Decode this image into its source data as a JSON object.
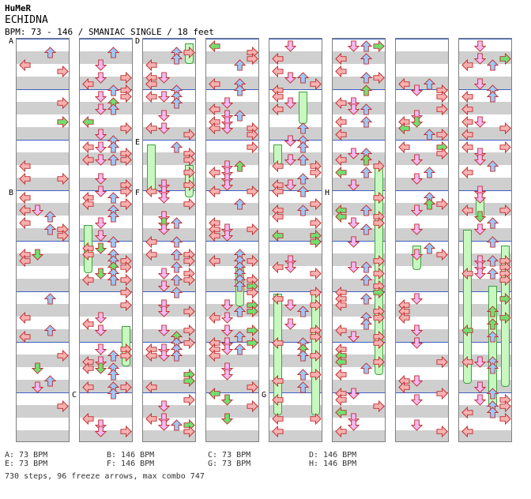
{
  "song": {
    "artist": "HuMeR",
    "title": "ECHIDNA",
    "info": "BPM: 73 - 146 / SMANIAC SINGLE / 18 feet"
  },
  "bpm_legend": [
    [
      "A: 73 BPM",
      "B: 146 BPM",
      "C: 73 BPM",
      "D: 146 BPM"
    ],
    [
      "E: 73 BPM",
      "F: 146 BPM",
      "G: 73 BPM",
      "H: 146 BPM"
    ]
  ],
  "summary": "730 steps, 96 freeze arrows, max combo 747",
  "section_markers": [
    {
      "label": "A",
      "column": 0,
      "row": 0
    },
    {
      "label": "B",
      "column": 0,
      "row": 3
    },
    {
      "label": "C",
      "column": 1,
      "row": 7
    },
    {
      "label": "D",
      "column": 2,
      "row": 0
    },
    {
      "label": "E",
      "column": 2,
      "row": 2
    },
    {
      "label": "F",
      "column": 2,
      "row": 3
    },
    {
      "label": "G",
      "column": 4,
      "row": 7
    },
    {
      "label": "H",
      "column": 5,
      "row": 3
    }
  ],
  "arrow_colors": {
    "left": "#f8b0b0",
    "down": "#f4b8f4",
    "up": "#9cc8f8",
    "right": "#f8b0b0",
    "freeze": "#70e070",
    "freeze_body": "#c8f8c0",
    "measure_line": "#4060c0"
  },
  "columns": [
    {
      "id": 0,
      "density": 0.35,
      "freezes": []
    },
    {
      "id": 1,
      "density": 0.9,
      "freezes": [
        [
          0.45,
          0.12,
          0
        ],
        [
          0.7,
          0.1,
          3
        ]
      ]
    },
    {
      "id": 2,
      "density": 0.85,
      "freezes": [
        [
          0.0,
          0.05,
          3
        ],
        [
          0.25,
          0.12,
          0
        ],
        [
          0.3,
          0.08,
          3
        ]
      ]
    },
    {
      "id": 3,
      "density": 0.8,
      "freezes": [
        [
          0.55,
          0.1,
          2
        ]
      ]
    },
    {
      "id": 4,
      "density": 0.75,
      "freezes": [
        [
          0.12,
          0.08,
          2
        ],
        [
          0.62,
          0.3,
          0
        ],
        [
          0.62,
          0.3,
          3
        ],
        [
          0.25,
          0.05,
          0
        ]
      ]
    },
    {
      "id": 5,
      "density": 0.8,
      "freezes": [
        [
          0.3,
          0.52,
          3
        ]
      ]
    },
    {
      "id": 6,
      "density": 0.65,
      "freezes": [
        [
          0.5,
          0.06,
          1
        ]
      ]
    },
    {
      "id": 7,
      "density": 0.8,
      "freezes": [
        [
          0.38,
          0.05,
          1
        ],
        [
          0.46,
          0.38,
          0
        ],
        [
          0.6,
          0.3,
          2
        ],
        [
          0.5,
          0.35,
          3
        ]
      ]
    }
  ]
}
